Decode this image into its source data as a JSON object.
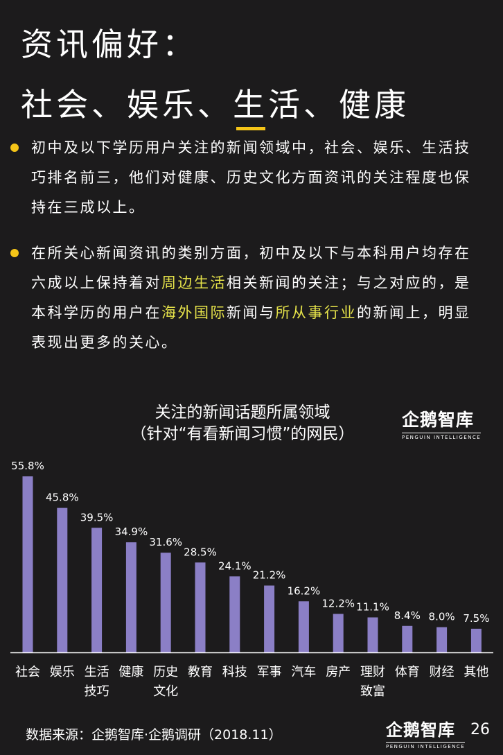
{
  "header": {
    "title_line1": "资讯偏好：",
    "title_line2": "社会、娱乐、生活、健康"
  },
  "bullets": [
    {
      "segments": [
        {
          "text": "初中及以下学历用户关注的新闻领域中，社会、娱乐、生活技巧排名前三，他们对健康、历史文化方面资讯的关注程度也保持在三成以上。",
          "highlight": false
        }
      ]
    },
    {
      "segments": [
        {
          "text": "在所关心新闻资讯的类别方面，初中及以下与本科用户均存在六成以上保持着对",
          "highlight": false
        },
        {
          "text": "周边生活",
          "highlight": true
        },
        {
          "text": "相关新闻的关注；与之对应的，是本科学历的用户在",
          "highlight": false
        },
        {
          "text": "海外国际",
          "highlight": true
        },
        {
          "text": "新闻与",
          "highlight": false
        },
        {
          "text": "所从事行业",
          "highlight": true
        },
        {
          "text": "的新闻上，明显表现出更多的关心。",
          "highlight": false
        }
      ]
    }
  ],
  "logo": {
    "name_cn": "企鹅智库",
    "name_en": "PENGUIN INTELLIGENCE"
  },
  "chart_data": {
    "type": "bar",
    "title": "关注的新闻话题所属领域",
    "subtitle": "（针对“有看新闻习惯”的网民）",
    "categories": [
      "社会",
      "娱乐",
      "生活\n技巧",
      "健康",
      "历史\n文化",
      "教育",
      "科技",
      "军事",
      "汽车",
      "房产",
      "理财\n致富",
      "体育",
      "财经",
      "其他"
    ],
    "values": [
      55.8,
      45.8,
      39.5,
      34.9,
      31.6,
      28.5,
      24.1,
      21.2,
      16.2,
      12.2,
      11.1,
      8.4,
      8.0,
      7.5
    ],
    "value_labels": [
      "55.8%",
      "45.8%",
      "39.5%",
      "34.9%",
      "31.6%",
      "28.5%",
      "24.1%",
      "21.2%",
      "16.2%",
      "12.2%",
      "11.1%",
      "8.4%",
      "8.0%",
      "7.5%"
    ],
    "unit": "%",
    "bar_color": "#8b7fc6",
    "axis_color": "#ffffff"
  },
  "footer": {
    "source": "数据来源：企鹅智库·企鹅调研（2018.11）",
    "page_number": "26"
  }
}
